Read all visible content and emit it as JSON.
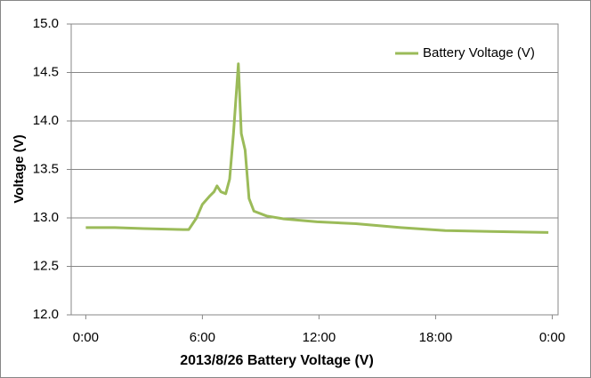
{
  "chart_data": {
    "type": "line",
    "x_label": "2013/8/26 Battery Voltage (V)",
    "y_label": "Voltage (V)",
    "x": [
      0,
      1.5,
      3,
      5,
      5.3,
      5.7,
      6.0,
      6.4,
      6.6,
      6.75,
      6.95,
      7.2,
      7.4,
      7.6,
      7.85,
      8.0,
      8.2,
      8.4,
      8.65,
      9.3,
      10.2,
      11.9,
      13.9,
      16.2,
      18.5,
      20.8,
      23.8
    ],
    "series": [
      {
        "name": "Battery Voltage (V)",
        "color": "#9bbb59",
        "values": [
          12.9,
          12.9,
          12.89,
          12.88,
          12.88,
          13.0,
          13.14,
          13.23,
          13.27,
          13.33,
          13.27,
          13.25,
          13.4,
          13.87,
          14.59,
          13.87,
          13.7,
          13.2,
          13.07,
          13.02,
          12.99,
          12.96,
          12.94,
          12.9,
          12.87,
          12.86,
          12.85
        ]
      }
    ],
    "xlim": [
      -0.75,
      24.3
    ],
    "xticks": [
      {
        "value": 0,
        "label": "0:00"
      },
      {
        "value": 6,
        "label": "6:00"
      },
      {
        "value": 12,
        "label": "12:00"
      },
      {
        "value": 18,
        "label": "18:00"
      },
      {
        "value": 24,
        "label": "0:00"
      }
    ],
    "ylim": [
      12,
      15
    ],
    "yticks": [
      {
        "value": 12,
        "label": "12.0"
      },
      12.5,
      {
        "value": 13,
        "label": "13.0"
      },
      13.5,
      {
        "value": 14,
        "label": "14.0"
      },
      14.5,
      {
        "value": 15,
        "label": "15.0"
      }
    ],
    "grid": true,
    "legend": "top-right"
  }
}
